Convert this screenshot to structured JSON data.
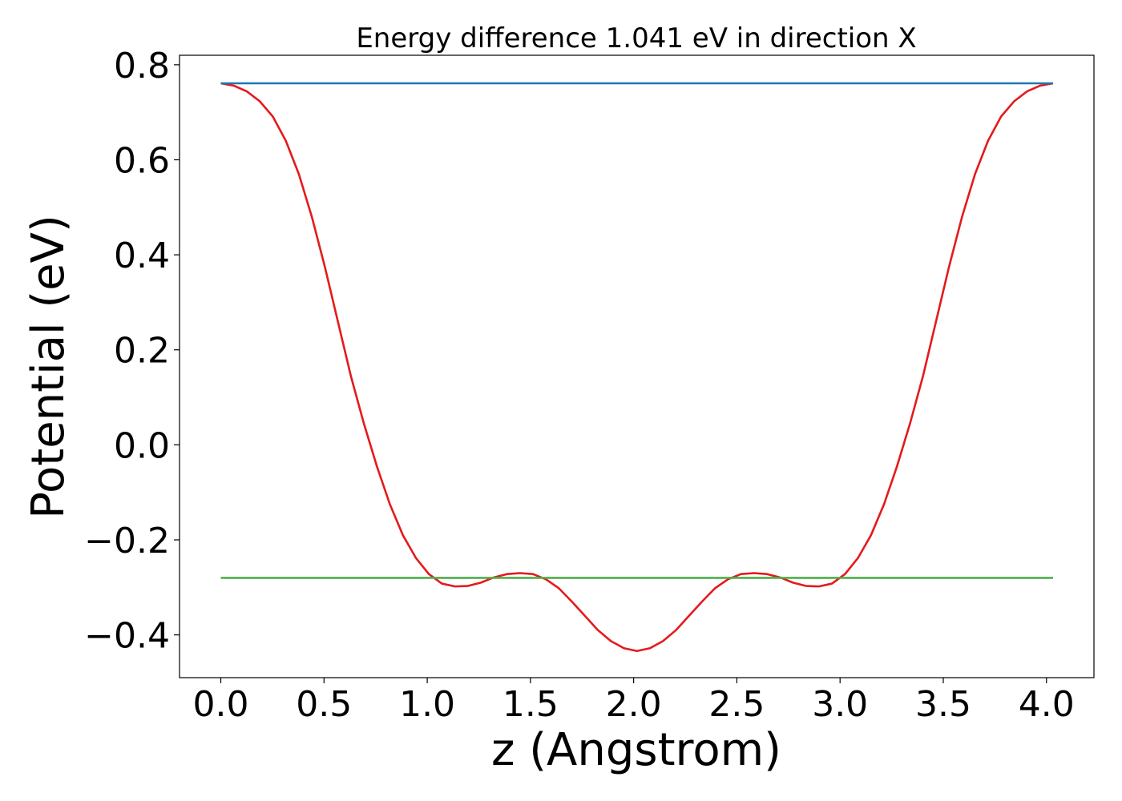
{
  "chart_data": {
    "type": "line",
    "title": "Energy difference 1.041 eV in direction X",
    "xlabel": "z (Angstrom)",
    "ylabel": "Potential (eV)",
    "xlim": [
      -0.2,
      4.23
    ],
    "ylim": [
      -0.49,
      0.82
    ],
    "xticks": [
      0.0,
      0.5,
      1.0,
      1.5,
      2.0,
      2.5,
      3.0,
      3.5,
      4.0
    ],
    "xtick_labels": [
      "0.0",
      "0.5",
      "1.0",
      "1.5",
      "2.0",
      "2.5",
      "3.0",
      "3.5",
      "4.0"
    ],
    "yticks": [
      -0.4,
      -0.2,
      0.0,
      0.2,
      0.4,
      0.6,
      0.8
    ],
    "ytick_labels": [
      "−0.4",
      "−0.2",
      "0.0",
      "0.2",
      "0.4",
      "0.6",
      "0.8"
    ],
    "grid": false,
    "legend": "none",
    "series": [
      {
        "color": "#e41a1c",
        "x": [
          0.0,
          0.063,
          0.126,
          0.189,
          0.252,
          0.315,
          0.378,
          0.441,
          0.504,
          0.567,
          0.63,
          0.693,
          0.756,
          0.819,
          0.882,
          0.945,
          1.008,
          1.071,
          1.134,
          1.197,
          1.26,
          1.323,
          1.386,
          1.449,
          1.512,
          1.575,
          1.638,
          1.701,
          1.764,
          1.827,
          1.89,
          1.953,
          2.016,
          2.079,
          2.142,
          2.205,
          2.268,
          2.331,
          2.394,
          2.457,
          2.52,
          2.583,
          2.646,
          2.709,
          2.772,
          2.835,
          2.898,
          2.961,
          3.024,
          3.087,
          3.15,
          3.213,
          3.276,
          3.339,
          3.402,
          3.465,
          3.528,
          3.591,
          3.654,
          3.717,
          3.78,
          3.843,
          3.906,
          3.969,
          4.032
        ],
        "y": [
          0.761,
          0.756,
          0.744,
          0.723,
          0.691,
          0.64,
          0.57,
          0.48,
          0.375,
          0.26,
          0.145,
          0.045,
          -0.045,
          -0.125,
          -0.19,
          -0.238,
          -0.272,
          -0.292,
          -0.298,
          -0.297,
          -0.29,
          -0.279,
          -0.272,
          -0.27,
          -0.272,
          -0.283,
          -0.302,
          -0.33,
          -0.36,
          -0.39,
          -0.413,
          -0.428,
          -0.434,
          -0.428,
          -0.413,
          -0.39,
          -0.36,
          -0.33,
          -0.302,
          -0.283,
          -0.272,
          -0.27,
          -0.272,
          -0.279,
          -0.29,
          -0.297,
          -0.298,
          -0.292,
          -0.272,
          -0.238,
          -0.19,
          -0.125,
          -0.045,
          0.045,
          0.145,
          0.26,
          0.375,
          0.48,
          0.57,
          0.64,
          0.691,
          0.723,
          0.744,
          0.756,
          0.761
        ]
      },
      {
        "color": "#1f77b4",
        "x": [
          0.0,
          4.032
        ],
        "y": [
          0.761,
          0.761
        ]
      },
      {
        "color": "#4daf4a",
        "x": [
          0.0,
          4.032
        ],
        "y": [
          -0.28,
          -0.28
        ]
      }
    ]
  }
}
